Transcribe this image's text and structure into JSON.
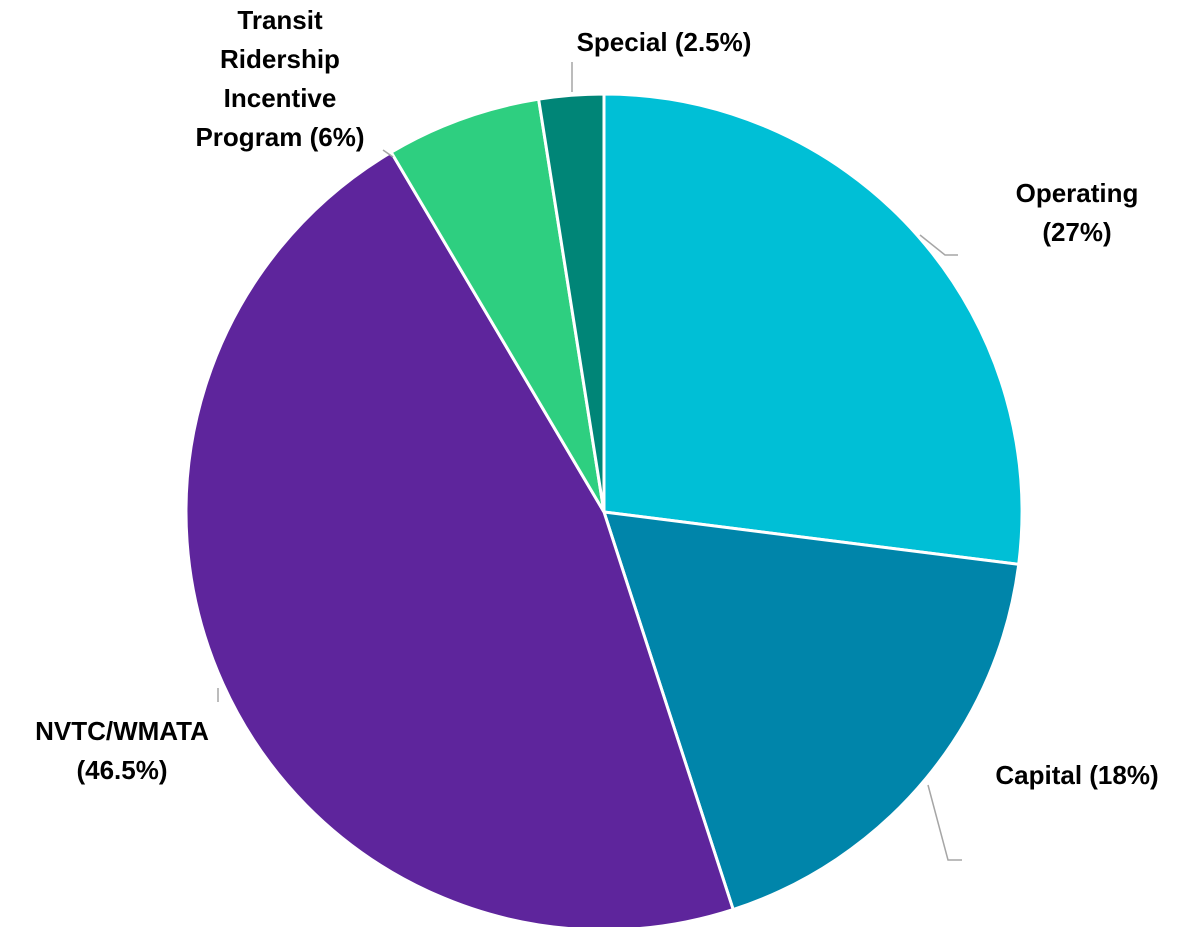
{
  "chart_data": {
    "type": "pie",
    "categories": [
      "Operating\n(27%)",
      "Capital (18%)",
      "NVTC/WMATA\n(46.5%)",
      "Transit\nRidership\nIncentive\nProgram (6%)",
      "Special (2.5%)"
    ],
    "values": [
      27,
      18,
      46.5,
      6,
      2.5
    ],
    "colors": [
      "#00bfd6",
      "#0085aa",
      "#5e259c",
      "#2ecf80",
      "#008577"
    ]
  }
}
